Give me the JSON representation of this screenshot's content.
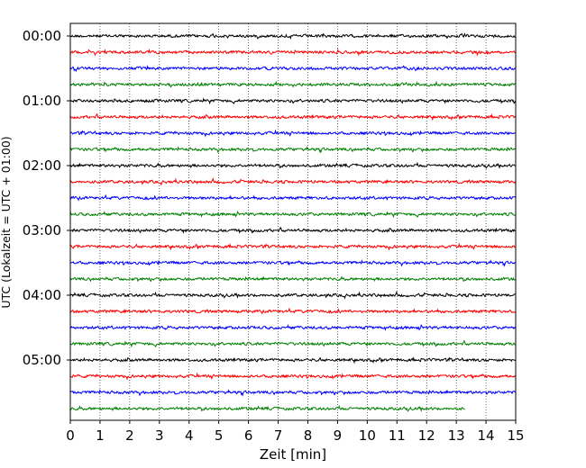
{
  "chart_data": {
    "type": "line",
    "title": "",
    "xlabel": "Zeit  [min]",
    "ylabel": "UTC (Lokalzeit = UTC + 01:00)",
    "xlim": [
      0,
      15
    ],
    "x_ticks": [
      "0",
      "1",
      "2",
      "3",
      "4",
      "5",
      "6",
      "7",
      "8",
      "9",
      "10",
      "11",
      "12",
      "13",
      "14",
      "15"
    ],
    "y_tick_labels": [
      "00:00",
      "01:00",
      "02:00",
      "03:00",
      "04:00",
      "05:00"
    ],
    "traces_per_hour": 4,
    "trace_interval_min": 15,
    "trace_count": 24,
    "last_trace_end_min": 13.3,
    "grid": "vertical dotted at each minute",
    "series_colors": [
      "#000000",
      "#ff0000",
      "#0000ff",
      "#008000"
    ]
  }
}
